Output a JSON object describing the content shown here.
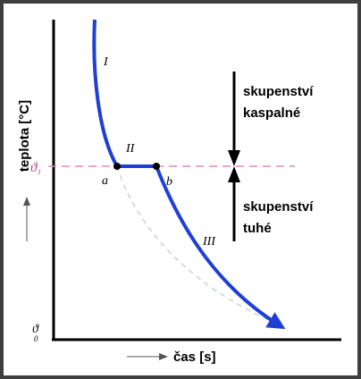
{
  "chart_data": {
    "type": "line",
    "title": "",
    "xlabel": "čas [s]",
    "ylabel": "teplota [°C]",
    "ticks": {
      "melting_point": "ϑ",
      "melting_point_sub": "t",
      "origin": "ϑ",
      "origin_sub": "0"
    },
    "segment_labels": [
      "I",
      "II",
      "III"
    ],
    "point_labels": {
      "start": "a",
      "end": "b"
    },
    "states": {
      "liquid": [
        "skupenství",
        "kaspalné"
      ],
      "solid": [
        "skupenství",
        "tuhé"
      ]
    },
    "colors": {
      "curve": "#1f3fd6",
      "reference_line": "#e08ab8",
      "undercooling": "#c8d4cc",
      "axis": "#000000"
    }
  }
}
